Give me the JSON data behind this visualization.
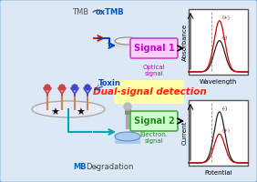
{
  "bg_color": "#dce8f5",
  "outer_border_color": "#6fa8d6",
  "title": "Dual-signal detection",
  "signal1_label": "Signal 1",
  "signal1_sub": "Optical\nsignal",
  "signal2_label": "Signal 2",
  "signal2_sub": "Electron.\nsignal",
  "tmb_label": "TMB",
  "oxtmb_label": "oxTMB",
  "mb_label": "MB",
  "deg_label": "Degradation",
  "toxin_label": "Toxin",
  "wavelength_label": "Wavelength",
  "potential_label": "Potential",
  "absorbance_label": "Absorbance",
  "current_label": "Current",
  "plus_label": "(+)",
  "minus_label": "(-)",
  "signal1_box_color": "#ff69b4",
  "signal2_box_color": "#90ee90",
  "dual_bg_color": "#ffffaa",
  "dual_text_color": "#ff2200"
}
